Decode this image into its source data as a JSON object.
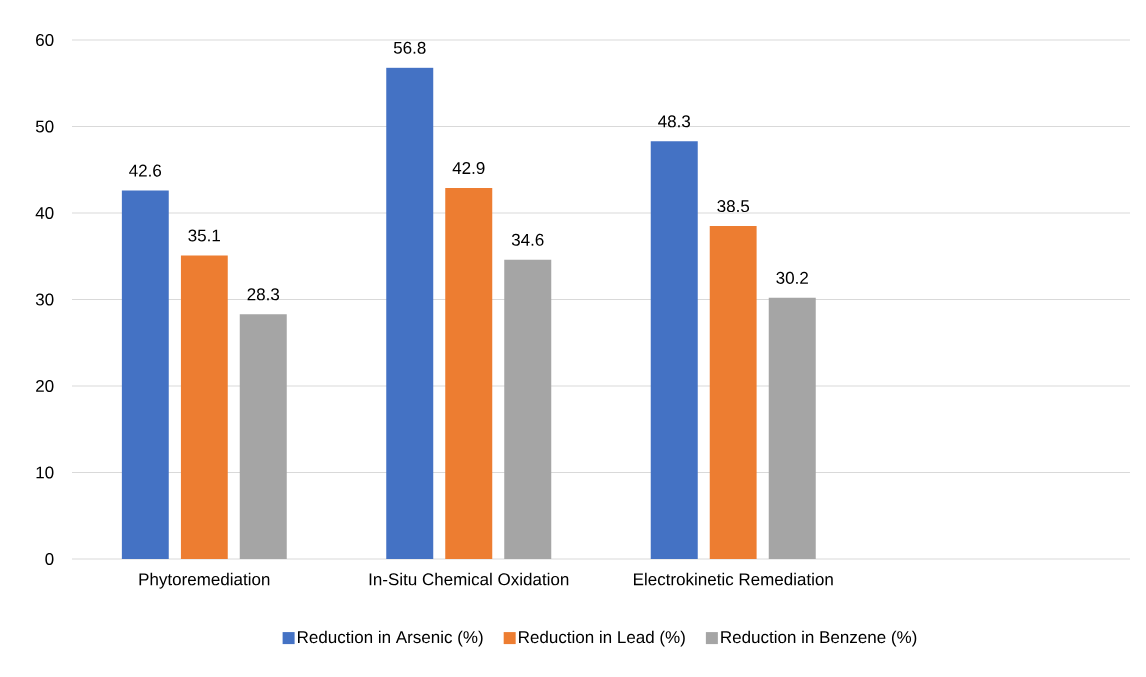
{
  "chart_data": {
    "type": "bar",
    "categories": [
      "Phytoremediation",
      "In-Situ Chemical Oxidation",
      "Electrokinetic Remediation",
      null
    ],
    "series": [
      {
        "name": "Reduction in Arsenic (%)",
        "color": "#4472c4",
        "values": [
          42.6,
          56.8,
          48.3,
          null
        ]
      },
      {
        "name": "Reduction in Lead (%)",
        "color": "#ed7d31",
        "values": [
          35.1,
          42.9,
          38.5,
          null
        ]
      },
      {
        "name": "Reduction in Benzene (%)",
        "color": "#a5a5a5",
        "values": [
          28.3,
          34.6,
          30.2,
          null
        ]
      }
    ],
    "ylim": [
      0,
      60
    ],
    "yticks": [
      0,
      10,
      20,
      30,
      40,
      50,
      60
    ],
    "grid": "y",
    "legend": "bottom",
    "data_labels": true
  }
}
